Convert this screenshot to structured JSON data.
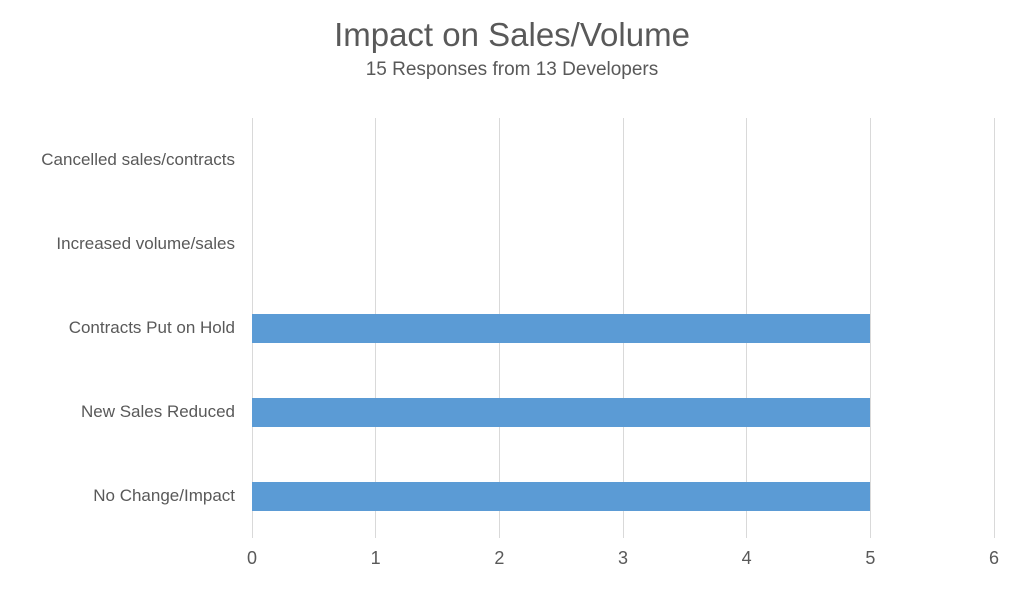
{
  "chart_data": {
    "type": "bar",
    "orientation": "horizontal",
    "title": "Impact on Sales/Volume",
    "subtitle": "15 Responses from 13 Developers",
    "categories": [
      "Cancelled sales/contracts",
      "Increased volume/sales",
      "Contracts Put on Hold",
      "New Sales Reduced",
      "No Change/Impact"
    ],
    "values": [
      0,
      0,
      5,
      5,
      5
    ],
    "xlabel": "",
    "ylabel": "",
    "xlim": [
      0,
      6
    ],
    "x_ticks": [
      0,
      1,
      2,
      3,
      4,
      5,
      6
    ],
    "grid": "vertical-gridlines-on",
    "legend": "none",
    "colors": {
      "bar": "#5b9bd5",
      "gridline": "#d9d9d9",
      "text": "#595959",
      "background": "#ffffff"
    }
  }
}
